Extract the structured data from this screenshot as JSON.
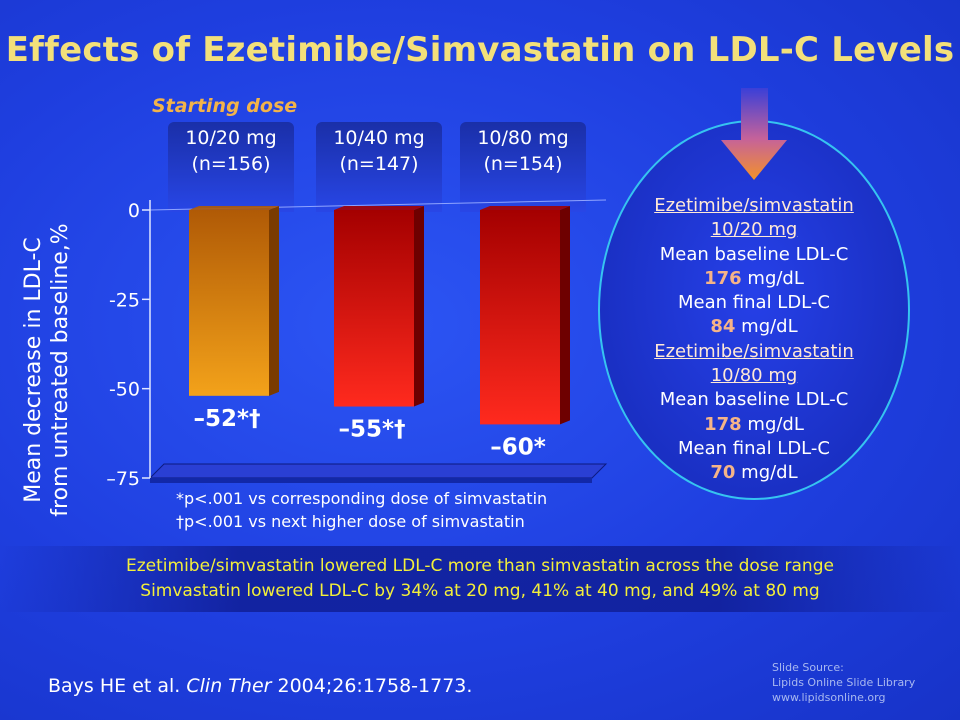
{
  "title": "Effects of Ezetimibe/Simvastatin on LDL-C Levels",
  "starting_dose_label": "Starting dose",
  "chart_data": {
    "type": "bar",
    "categories": [
      "10/20 mg (n=156)",
      "10/40 mg (n=147)",
      "10/80 mg (n=154)"
    ],
    "dose_labels": [
      {
        "dose": "10/20 mg",
        "n": "(n=156)"
      },
      {
        "dose": "10/40 mg",
        "n": "(n=147)"
      },
      {
        "dose": "10/80 mg",
        "n": "(n=154)"
      }
    ],
    "values": [
      -52,
      -55,
      -60
    ],
    "value_labels": [
      "–52*†",
      "–55*†",
      "–60*"
    ],
    "ylabel_line1": "Mean decrease in LDL-C",
    "ylabel_line2": "from untreated baseline,%",
    "yticks": [
      0,
      -25,
      -50,
      -75
    ],
    "ytick_labels": [
      "0",
      "-25",
      "-50",
      "–75"
    ],
    "ylim": [
      -75,
      0
    ],
    "bar_colors": [
      {
        "top": "#b05a06",
        "bottom": "#f3a21a",
        "side": "#7a3b00"
      },
      {
        "top": "#a40000",
        "bottom": "#ff2a1e",
        "side": "#6e0000"
      },
      {
        "top": "#a40000",
        "bottom": "#ff2a1e",
        "side": "#6e0000"
      }
    ],
    "floor_color": "#2a3fd4"
  },
  "footnotes": [
    "*p<.001 vs corresponding dose of simvastatin",
    "†p<.001 vs next higher dose of simvastatin"
  ],
  "callout": {
    "group1_title_a": "Ezetimibe/simvastatin",
    "group1_title_b": "10/20 mg",
    "group1_baseline_label": "Mean baseline LDL-C",
    "group1_baseline_value": "176",
    "group1_final_label": "Mean final LDL-C",
    "group1_final_value": "84",
    "group2_title_a": "Ezetimibe/simvastatin",
    "group2_title_b": "10/80 mg",
    "group2_baseline_label": "Mean baseline LDL-C",
    "group2_baseline_value": "178",
    "group2_final_label": "Mean final LDL-C",
    "group2_final_value": "70",
    "unit": "mg/dL"
  },
  "takeaways": [
    "Ezetimibe/simvastatin lowered LDL-C more than simvastatin across the dose range",
    "Simvastatin lowered LDL-C by 34% at 20 mg, 41% at 40 mg, and 49% at 80 mg"
  ],
  "citation": {
    "authors": "Bays HE et al.",
    "journal": "Clin Ther",
    "ref": "2004;26:1758-1773."
  },
  "source": {
    "line1": "Slide Source:",
    "line2": "Lipids Online Slide Library",
    "line3": "www.lipidsonline.org"
  },
  "colors": {
    "background": "#1f3fe0",
    "title": "#f3e07a",
    "starting_dose": "#f3b34a",
    "takeaway": "#f3ef3a",
    "arrow": "#f3922a"
  }
}
